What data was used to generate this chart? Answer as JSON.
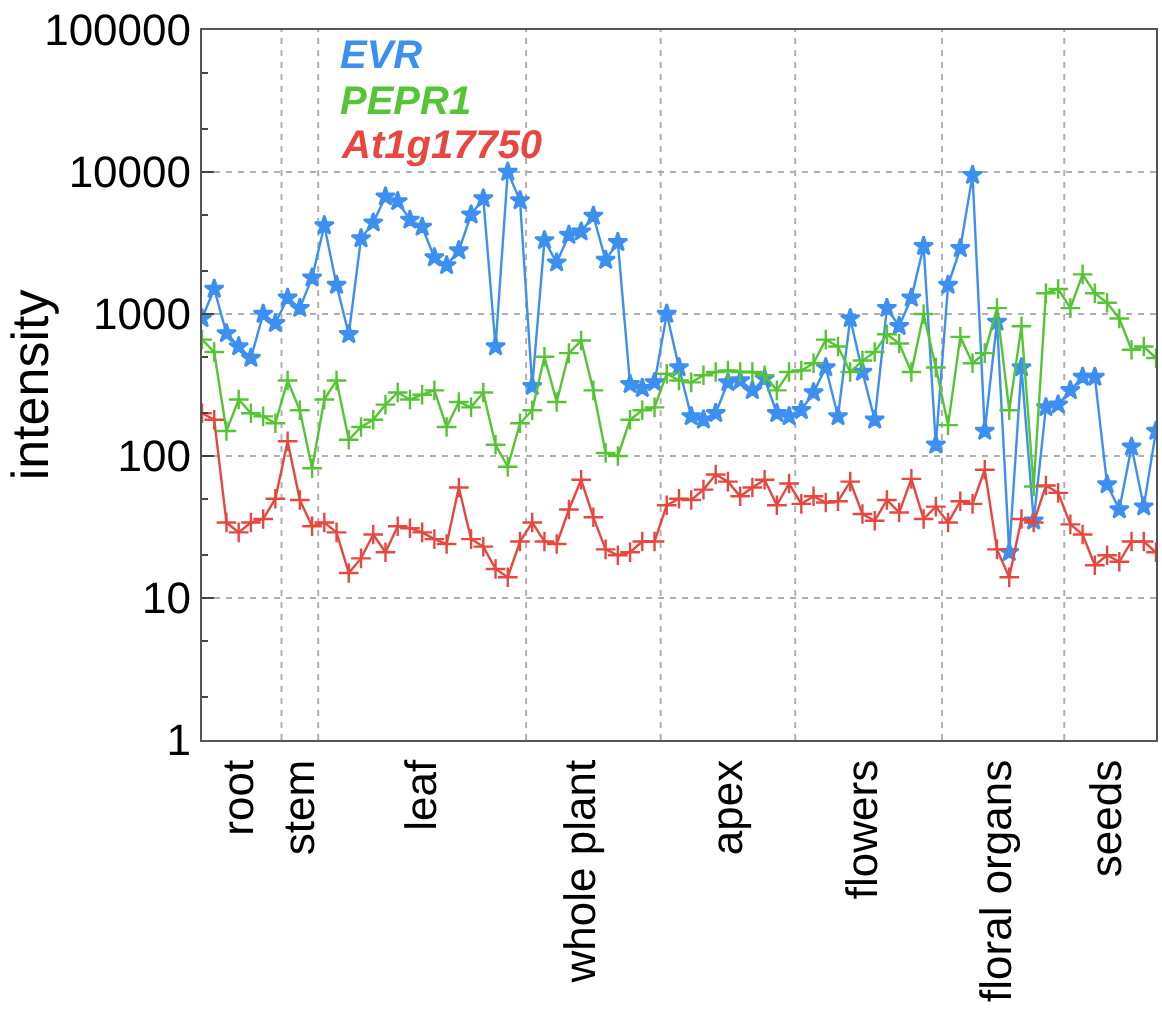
{
  "chart_data": {
    "type": "line",
    "ylabel": "intensity",
    "log": "y",
    "grid": "y",
    "categories": [
      null,
      null,
      null,
      "root",
      null,
      null,
      null,
      null,
      "stem",
      null,
      null,
      null,
      null,
      null,
      null,
      null,
      null,
      null,
      "leaf",
      null,
      null,
      null,
      null,
      null,
      null,
      null,
      null,
      null,
      null,
      null,
      null,
      "whole plant",
      null,
      null,
      null,
      null,
      null,
      null,
      null,
      null,
      null,
      null,
      null,
      "apex",
      null,
      null,
      null,
      null,
      null,
      null,
      null,
      null,
      null,
      null,
      "flowers",
      null,
      null,
      null,
      null,
      null,
      null,
      null,
      null,
      null,
      null,
      "floral organs",
      null,
      null,
      null,
      null,
      null,
      null,
      null,
      null,
      "seeds",
      null,
      null,
      null,
      null
    ],
    "ylim": [
      1,
      100000
    ],
    "yticks": [
      1,
      10,
      100,
      1000,
      10000,
      100000
    ],
    "series": [
      {
        "name": "EVR",
        "color": "#3d8ff0",
        "marker": "star",
        "values": [
          930,
          1500,
          730,
          590,
          490,
          1000,
          860,
          1300,
          1100,
          1800,
          4200,
          1600,
          720,
          3400,
          4400,
          6700,
          6200,
          4600,
          4100,
          2500,
          2200,
          2800,
          5000,
          6500,
          590,
          10000,
          6300,
          310,
          3300,
          2300,
          3600,
          3800,
          4900,
          2400,
          3200,
          320,
          300,
          330,
          1000,
          420,
          190,
          180,
          200,
          330,
          340,
          290,
          350,
          200,
          190,
          210,
          280,
          420,
          190,
          930,
          390,
          180,
          1100,
          820,
          1300,
          3000,
          120,
          1600,
          2900,
          9500,
          150,
          880,
          21,
          420,
          35,
          220,
          230,
          290,
          360,
          360,
          63,
          42,
          116,
          44,
          150
        ]
      },
      {
        "name": "PEPR1",
        "color": "#55c435",
        "marker": "cross",
        "values": [
          660,
          540,
          150,
          250,
          200,
          190,
          170,
          340,
          210,
          82,
          250,
          340,
          130,
          160,
          180,
          230,
          280,
          250,
          270,
          290,
          160,
          240,
          220,
          280,
          120,
          84,
          170,
          210,
          500,
          240,
          530,
          650,
          290,
          105,
          100,
          180,
          210,
          220,
          380,
          340,
          330,
          370,
          390,
          400,
          390,
          390,
          370,
          290,
          390,
          400,
          450,
          660,
          590,
          390,
          470,
          540,
          720,
          620,
          390,
          1000,
          420,
          165,
          690,
          450,
          530,
          1100,
          210,
          820,
          61,
          1400,
          1500,
          1100,
          1900,
          1400,
          1200,
          930,
          560,
          590,
          490
        ]
      },
      {
        "name": "At1g17750",
        "color": "#e8473f",
        "marker": "cross",
        "values": [
          200,
          180,
          34,
          29,
          34,
          36,
          50,
          127,
          49,
          32,
          34,
          29,
          15,
          19,
          28,
          21,
          32,
          31,
          29,
          26,
          24,
          60,
          26,
          23,
          16,
          14,
          25,
          34,
          25,
          24,
          42,
          68,
          37,
          22,
          20,
          21,
          25,
          25,
          45,
          50,
          49,
          58,
          74,
          66,
          52,
          60,
          68,
          45,
          64,
          46,
          52,
          47,
          48,
          66,
          39,
          35,
          49,
          40,
          69,
          36,
          44,
          34,
          48,
          46,
          80,
          22,
          14,
          36,
          34,
          62,
          55,
          33,
          28,
          17,
          20,
          18,
          25,
          25,
          21
        ]
      }
    ]
  }
}
